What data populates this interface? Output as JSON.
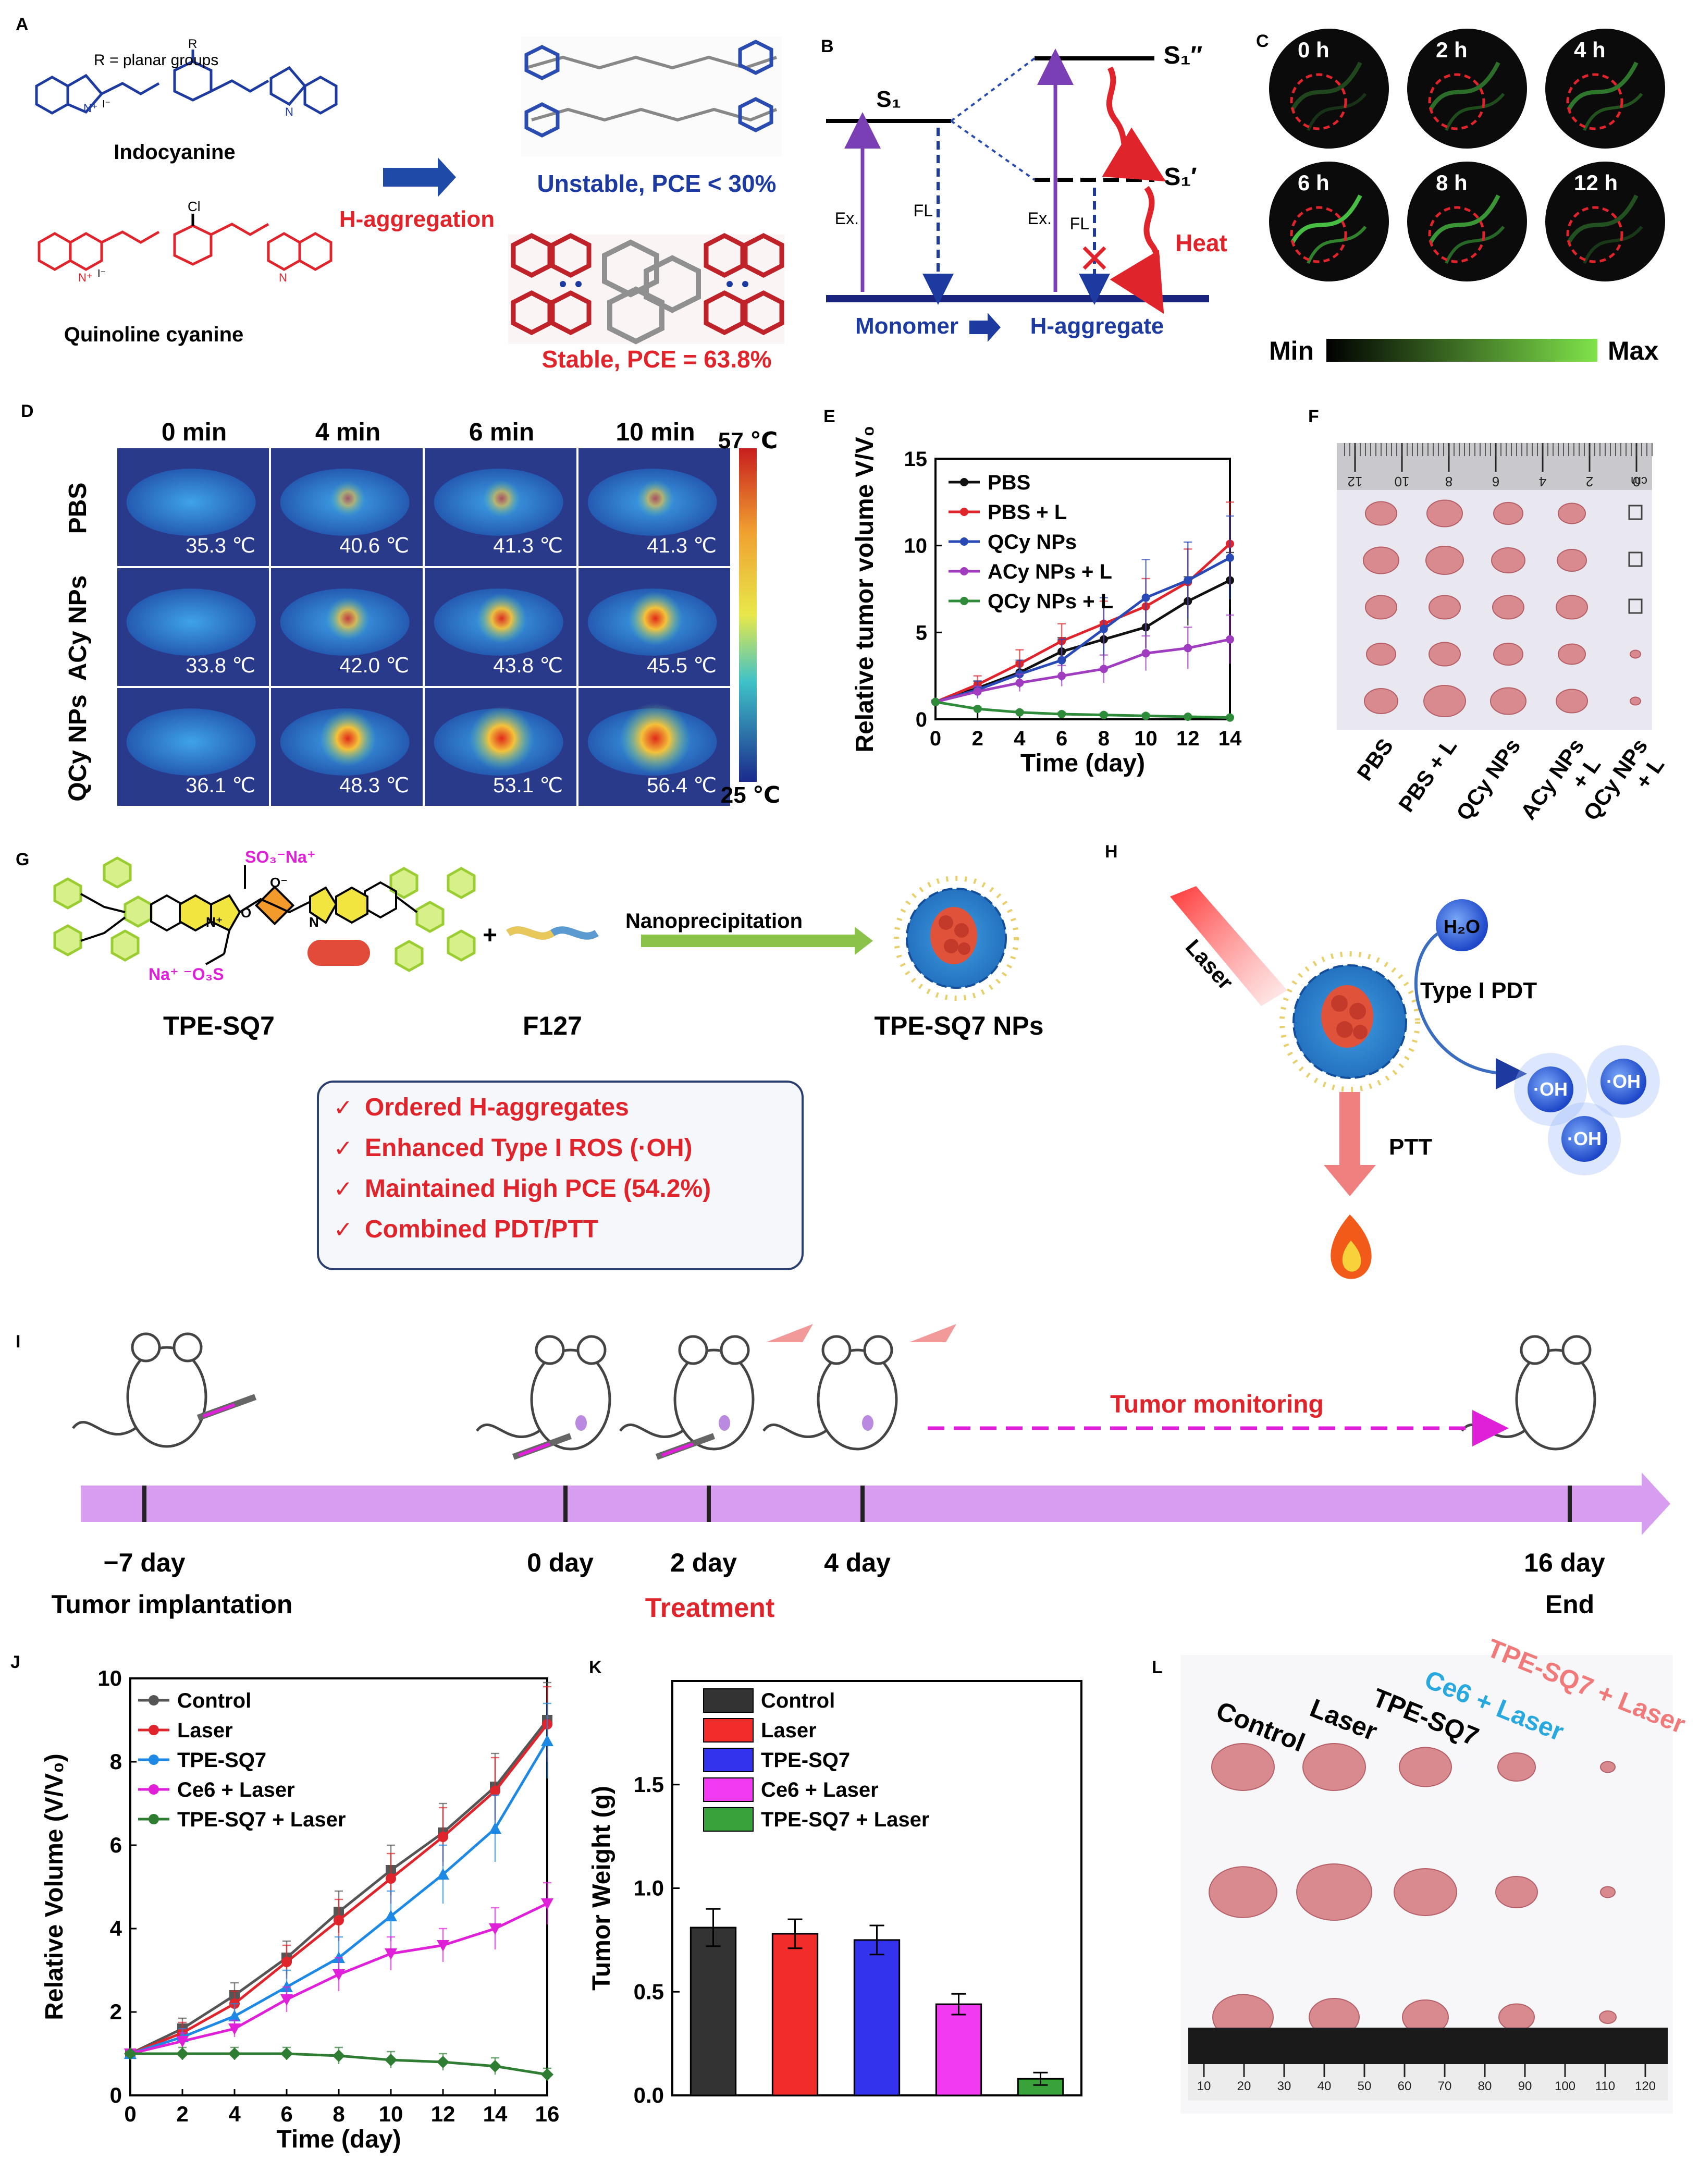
{
  "panels": {
    "A": "A",
    "B": "B",
    "C": "C",
    "D": "D",
    "E": "E",
    "F": "F",
    "G": "G",
    "H": "H",
    "I": "I",
    "J": "J",
    "K": "K",
    "L": "L"
  },
  "colors": {
    "blue": "#1c3aa0",
    "red": "#e0242b",
    "purple": "#7b3fb5",
    "green_arrow": "#7ec33b",
    "magenta": "#e020d8",
    "timeline": "#d79ef0",
    "tissue": "#d98a8f"
  },
  "panelA": {
    "r_label": "R = planar  groups",
    "r_atom": "R",
    "cl_atom": "Cl",
    "n_plus": "N⁺",
    "iodide": "I⁻",
    "n_atom": "N",
    "indocyanine": "Indocyanine",
    "quinoline": "Quinoline cyanine",
    "arrow_label": "H-aggregation",
    "unstable": "Unstable, PCE < 30%",
    "stable": "Stable, PCE = 63.8%"
  },
  "panelB": {
    "s1": "S₁",
    "s1pp": "S₁″",
    "s1p": "S₁′",
    "ex_left": "Ex.",
    "fl_left": "FL",
    "ex_right": "Ex.",
    "fl_right": "FL",
    "heat": "Heat",
    "monomer": "Monomer",
    "h_aggregate": "H-aggregate"
  },
  "panelC": {
    "times": [
      "0 h",
      "2 h",
      "4 h",
      "6 h",
      "8 h",
      "12 h"
    ],
    "min": "Min",
    "max": "Max"
  },
  "panelD": {
    "columns": [
      "0 min",
      "4 min",
      "6 min",
      "10 min"
    ],
    "rows": [
      {
        "label": "PBS",
        "temps": [
          "35.3 ℃",
          "40.6 ℃",
          "41.3 ℃",
          "41.3 ℃"
        ]
      },
      {
        "label": "ACy NPs",
        "temps": [
          "33.8 ℃",
          "42.0 ℃",
          "43.8 ℃",
          "45.5 ℃"
        ]
      },
      {
        "label": "QCy NPs",
        "temps": [
          "36.1 ℃",
          "48.3 ℃",
          "53.1 ℃",
          "56.4 ℃"
        ]
      }
    ],
    "scale_max": "57 ℃",
    "scale_min": "25 ℃"
  },
  "panelF": {
    "groups": [
      "PBS",
      "PBS + L",
      "QCy NPs",
      "ACy NPs + L",
      "QCy NPs + L"
    ],
    "ruler_marks": [
      "12",
      "10",
      "8",
      "6",
      "4",
      "2",
      "0"
    ],
    "ruler_unit": "cm"
  },
  "panelG": {
    "so3na": "SO₃⁻Na⁺",
    "na_o3s": "Na⁺ ⁻O₃S",
    "n_plus": "N⁺",
    "n_atom": "N",
    "o_minus": "O⁻",
    "o_atom": "O",
    "tpe_sq7": "TPE-SQ7",
    "plus": "+",
    "f127": "F127",
    "process": "Nanoprecipitation",
    "product": "TPE-SQ7 NPs",
    "benefits": [
      "Ordered H-aggregates",
      "Enhanced Type I ROS (·OH)",
      "Maintained High PCE (54.2%)",
      "Combined PDT/PTT"
    ],
    "check": "✓"
  },
  "panelH": {
    "laser": "Laser",
    "h2o": "H₂O",
    "type1": "Type I PDT",
    "oh": "·OH",
    "ptt": "PTT"
  },
  "panelI": {
    "days": [
      "−7 day",
      "0 day",
      "2 day",
      "4 day",
      "16 day"
    ],
    "tumor_implant": "Tumor implantation",
    "treatment": "Treatment",
    "monitoring": "Tumor monitoring",
    "end": "End"
  },
  "panelL": {
    "groups": [
      "Control",
      "Laser",
      "TPE-SQ7",
      "Ce6 + Laser",
      "TPE-SQ7 + Laser"
    ],
    "ruler": [
      "10",
      "20",
      "30",
      "40",
      "50",
      "60",
      "70",
      "80",
      "90",
      "100",
      "110",
      "120"
    ]
  },
  "chart_data": [
    {
      "id": "E",
      "type": "line",
      "title": "",
      "xlabel": "Time (day)",
      "ylabel": "Relative tumor volume V/V₀",
      "xlim": [
        0,
        14
      ],
      "ylim": [
        0,
        15
      ],
      "xticks": [
        0,
        2,
        4,
        6,
        8,
        10,
        12,
        14
      ],
      "yticks": [
        0,
        5,
        10,
        15
      ],
      "x": [
        0,
        2,
        4,
        6,
        8,
        10,
        12,
        14
      ],
      "series": [
        {
          "name": "PBS",
          "color": "#111111",
          "values": [
            1,
            1.8,
            2.7,
            3.9,
            4.6,
            5.3,
            6.8,
            8.0
          ],
          "err": [
            0.1,
            0.4,
            0.6,
            0.8,
            1.0,
            1.2,
            1.4,
            1.6
          ]
        },
        {
          "name": "PBS + L",
          "color": "#e0242b",
          "values": [
            1,
            2.0,
            3.2,
            4.5,
            5.5,
            6.5,
            7.9,
            10.1
          ],
          "err": [
            0.1,
            0.5,
            0.8,
            1.0,
            1.3,
            1.6,
            1.9,
            2.4
          ]
        },
        {
          "name": "QCy NPs",
          "color": "#2849b6",
          "values": [
            1,
            1.7,
            2.6,
            3.4,
            5.2,
            7.0,
            8.0,
            9.3
          ],
          "err": [
            0.1,
            0.5,
            0.8,
            1.2,
            1.8,
            2.2,
            2.2,
            2.4
          ]
        },
        {
          "name": "ACy NPs + L",
          "color": "#a03cc0",
          "values": [
            1,
            1.6,
            2.1,
            2.5,
            2.9,
            3.8,
            4.1,
            4.6
          ],
          "err": [
            0.1,
            0.3,
            0.5,
            0.6,
            0.8,
            1.0,
            1.2,
            1.4
          ]
        },
        {
          "name": "QCy NPs + L",
          "color": "#2e8b3a",
          "values": [
            1,
            0.6,
            0.4,
            0.3,
            0.25,
            0.2,
            0.15,
            0.1
          ],
          "err": [
            0.05,
            0.1,
            0.1,
            0.1,
            0.1,
            0.1,
            0.05,
            0.05
          ]
        }
      ]
    },
    {
      "id": "J",
      "type": "line",
      "title": "",
      "xlabel": "Time (day)",
      "ylabel": "Relative Volume (V/V₀)",
      "xlim": [
        0,
        16
      ],
      "ylim": [
        0,
        10
      ],
      "xticks": [
        0,
        2,
        4,
        6,
        8,
        10,
        12,
        14,
        16
      ],
      "yticks": [
        0,
        2,
        4,
        6,
        8,
        10
      ],
      "x": [
        0,
        2,
        4,
        6,
        8,
        10,
        12,
        14,
        16
      ],
      "series": [
        {
          "name": "Control",
          "color": "#555555",
          "marker": "square",
          "values": [
            1,
            1.6,
            2.4,
            3.3,
            4.4,
            5.4,
            6.3,
            7.4,
            9.0
          ],
          "err": [
            0.05,
            0.25,
            0.3,
            0.4,
            0.5,
            0.6,
            0.7,
            0.8,
            0.9
          ]
        },
        {
          "name": "Laser",
          "color": "#e0242b",
          "marker": "circle",
          "values": [
            1,
            1.5,
            2.2,
            3.2,
            4.2,
            5.2,
            6.2,
            7.3,
            8.9
          ],
          "err": [
            0.05,
            0.25,
            0.3,
            0.4,
            0.5,
            0.6,
            0.7,
            0.8,
            0.9
          ]
        },
        {
          "name": "TPE-SQ7",
          "color": "#1e88e5",
          "marker": "triangle",
          "values": [
            1,
            1.4,
            1.9,
            2.6,
            3.3,
            4.3,
            5.3,
            6.4,
            8.5
          ],
          "err": [
            0.05,
            0.2,
            0.3,
            0.4,
            0.5,
            0.6,
            0.7,
            0.8,
            0.9
          ]
        },
        {
          "name": "Ce6 + Laser",
          "color": "#e020d8",
          "marker": "triangle-down",
          "values": [
            1,
            1.3,
            1.6,
            2.3,
            2.9,
            3.4,
            3.6,
            4.0,
            4.6
          ],
          "err": [
            0.05,
            0.2,
            0.2,
            0.3,
            0.4,
            0.4,
            0.4,
            0.5,
            0.5
          ]
        },
        {
          "name": "TPE-SQ7 + Laser",
          "color": "#2e7d32",
          "marker": "diamond",
          "values": [
            1,
            1.0,
            1.0,
            1.0,
            0.95,
            0.85,
            0.8,
            0.7,
            0.5
          ],
          "err": [
            0.05,
            0.15,
            0.15,
            0.15,
            0.2,
            0.2,
            0.2,
            0.2,
            0.15
          ]
        }
      ]
    },
    {
      "id": "K",
      "type": "bar",
      "title": "",
      "xlabel": "",
      "ylabel": "Tumor Weight (g)",
      "ylim": [
        0,
        2.0
      ],
      "yticks": [
        0.0,
        0.5,
        1.0,
        1.5
      ],
      "ytick_labels": [
        "0.0",
        "0.5",
        "1.0",
        "1.5"
      ],
      "categories": [
        "Control",
        "Laser",
        "TPE-SQ7",
        "Ce6 + Laser",
        "TPE-SQ7 + Laser"
      ],
      "values": [
        0.81,
        0.78,
        0.75,
        0.44,
        0.08
      ],
      "err": [
        0.09,
        0.07,
        0.07,
        0.05,
        0.03
      ],
      "colors": [
        "#333333",
        "#f22b2b",
        "#3333ee",
        "#f23af2",
        "#3aa23a"
      ]
    }
  ]
}
